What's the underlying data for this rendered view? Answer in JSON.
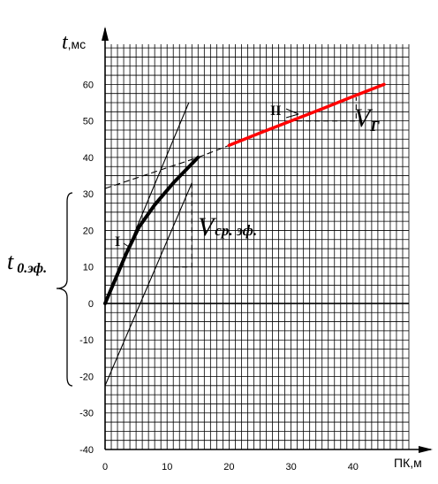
{
  "chart_data": {
    "type": "line",
    "xlabel": "ПК,м",
    "ylabel": "t",
    "ylabel_unit": ",мс",
    "xlim": [
      0,
      49
    ],
    "ylim": [
      -40,
      71
    ],
    "grid": true,
    "x_ticks": [
      0,
      10,
      20,
      30,
      40
    ],
    "y_ticks": [
      -40,
      -30,
      -20,
      -10,
      0,
      10,
      20,
      30,
      40,
      50,
      60
    ],
    "x_tick_labels": [
      "0",
      "10",
      "20",
      "30",
      "40"
    ],
    "y_tick_labels": [
      "-40",
      "-30",
      "-20",
      "-10",
      "0",
      "10",
      "20",
      "30",
      "40",
      "50",
      "60"
    ],
    "series": [
      {
        "role": "direct-wave",
        "color": "#000000",
        "x": [
          0,
          1.5,
          3.5,
          5.5,
          8,
          11,
          15
        ],
        "y": [
          0,
          6,
          14,
          21,
          27,
          33,
          40
        ]
      },
      {
        "role": "refracted-wave",
        "color": "#ff0000",
        "x": [
          20,
          25,
          30,
          35,
          40,
          45
        ],
        "y": [
          43.3,
          46.7,
          50.0,
          53.3,
          56.7,
          60.0
        ]
      }
    ],
    "guide_lines": [
      {
        "role": "tangent-direct",
        "x": [
          0,
          13.5
        ],
        "y": [
          0,
          55
        ]
      },
      {
        "role": "parallel-to-secant",
        "x": [
          0,
          14
        ],
        "y": [
          -22.5,
          33
        ]
      },
      {
        "role": "extrapolated-intercept",
        "x": [
          0,
          15
        ],
        "y": [
          31.5,
          40
        ],
        "dashed": true
      }
    ],
    "annotations": {
      "segment_I": "I",
      "segment_II": "II",
      "velocity_effective_symbol": "V",
      "velocity_effective_subscript": "ср. эф.",
      "velocity_boundary_symbol": "V",
      "velocity_boundary_subscript": "Г",
      "intercept_symbol": "t",
      "intercept_subscript": "0.эф."
    }
  }
}
